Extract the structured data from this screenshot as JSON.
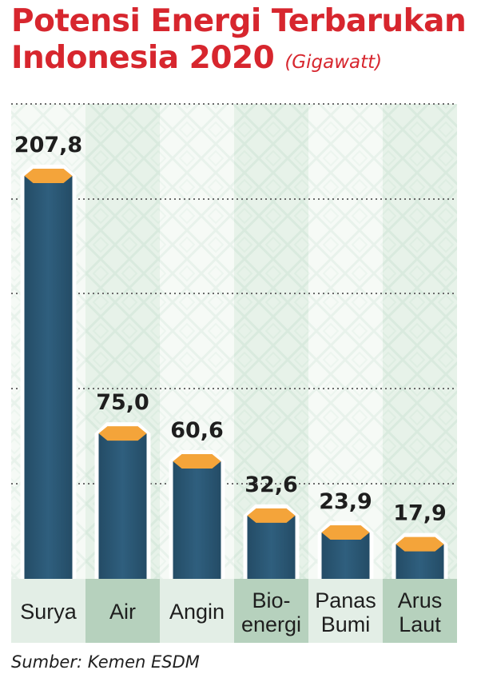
{
  "title_line1": "Potensi Energi Terbarukan",
  "title_line2": "Indonesia 2020",
  "unit": "(Gigawatt)",
  "source": "Sumber: Kemen ESDM",
  "colors": {
    "title": "#d7262e",
    "bar": "#2f5f7e",
    "bar_top": "#f4a43a",
    "label_band_light": "#e3eee6",
    "label_band_dark": "#b6d1bd",
    "background_tint": "#eaf3ed"
  },
  "chart_data": {
    "type": "bar",
    "categories": [
      [
        "Surya"
      ],
      [
        "Air"
      ],
      [
        "Angin"
      ],
      [
        "Bio-",
        "energi"
      ],
      [
        "Panas",
        "Bumi"
      ],
      [
        "Arus",
        "Laut"
      ]
    ],
    "values": [
      207.8,
      75.0,
      60.6,
      32.6,
      23.9,
      17.9
    ],
    "value_labels": [
      "207,8",
      "75,0",
      "60,6",
      "32,6",
      "23,9",
      "17,9"
    ],
    "grid": true,
    "ylim": [
      0,
      225
    ]
  }
}
